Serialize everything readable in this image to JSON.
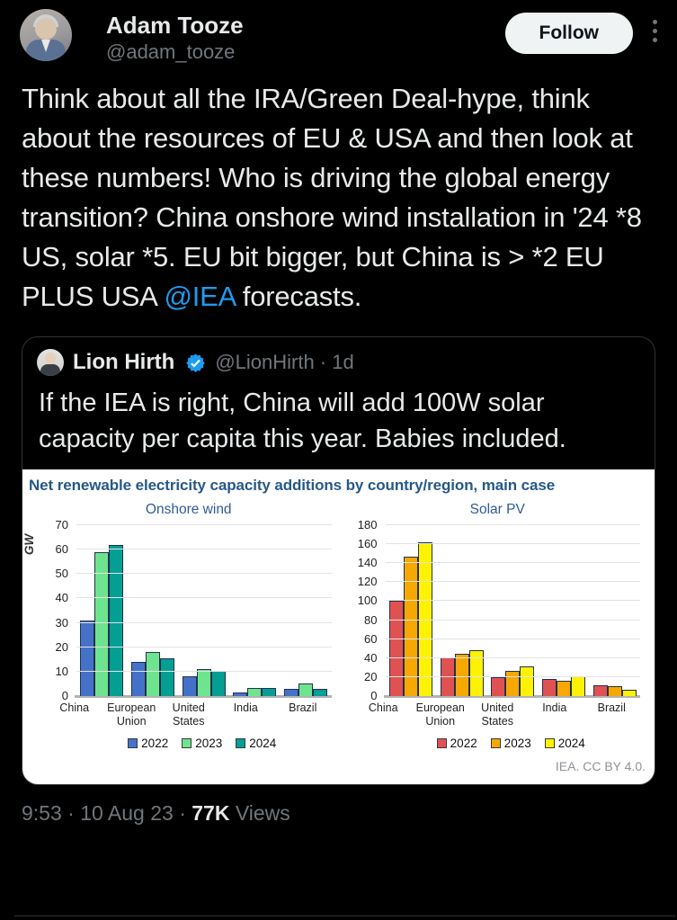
{
  "header": {
    "name": "Adam Tooze",
    "handle": "@adam_tooze",
    "follow_label": "Follow"
  },
  "tweet": {
    "text_before_link": "Think about all the IRA/Green Deal-hype, think about the resources of EU & USA and then look at these numbers! Who is driving the global energy transition? China onshore wind installation in '24 *8 US, solar *5. EU bit bigger, but China is > *2 EU PLUS USA ",
    "link_text": "@IEA",
    "text_after_link": " forecasts."
  },
  "quote": {
    "name": "Lion Hirth",
    "handle_meta": "@LionHirth · 1d",
    "text": "If the IEA is right, China will add 100W solar capacity per capita this year. Babies included."
  },
  "figure": {
    "title": "Net renewable electricity capacity additions by country/region, main case",
    "unit_label": "GW",
    "attribution": "IEA. CC BY 4.0."
  },
  "chart_data": [
    {
      "type": "bar",
      "title": "Onshore wind",
      "categories": [
        "China",
        "European Union",
        "United States",
        "India",
        "Brazil"
      ],
      "series": [
        {
          "name": "2022",
          "color": "#4472c8",
          "values": [
            31,
            14,
            8,
            1.5,
            3
          ]
        },
        {
          "name": "2023",
          "color": "#6fe48e",
          "values": [
            59,
            18,
            11,
            3.5,
            5
          ]
        },
        {
          "name": "2024",
          "color": "#049e93",
          "values": [
            62,
            15.5,
            10.5,
            3.5,
            3
          ]
        }
      ],
      "ylabel": "GW",
      "ylim": [
        0,
        70
      ],
      "ytick_step": 10,
      "grid": true,
      "legend_position": "bottom"
    },
    {
      "type": "bar",
      "title": "Solar PV",
      "categories": [
        "China",
        "European Union",
        "United States",
        "India",
        "Brazil"
      ],
      "series": [
        {
          "name": "2022",
          "color": "#e05252",
          "values": [
            100,
            41,
            20,
            18,
            11
          ]
        },
        {
          "name": "2023",
          "color": "#f6a800",
          "values": [
            147,
            45,
            27,
            16,
            10
          ]
        },
        {
          "name": "2024",
          "color": "#fff200",
          "values": [
            162,
            48,
            31,
            21,
            7
          ]
        }
      ],
      "ylabel": "GW",
      "ylim": [
        0,
        180
      ],
      "ytick_step": 20,
      "grid": true,
      "legend_position": "bottom"
    }
  ],
  "footer": {
    "prefix": "9:53 · 10 Aug 23 · ",
    "views_count": "77K",
    "views_label": " Views"
  },
  "colors": {
    "link": "#1d9bf0",
    "verified_badge": "#1d9bf0",
    "card_border": "#2f3336",
    "muted_text": "#71767b"
  }
}
